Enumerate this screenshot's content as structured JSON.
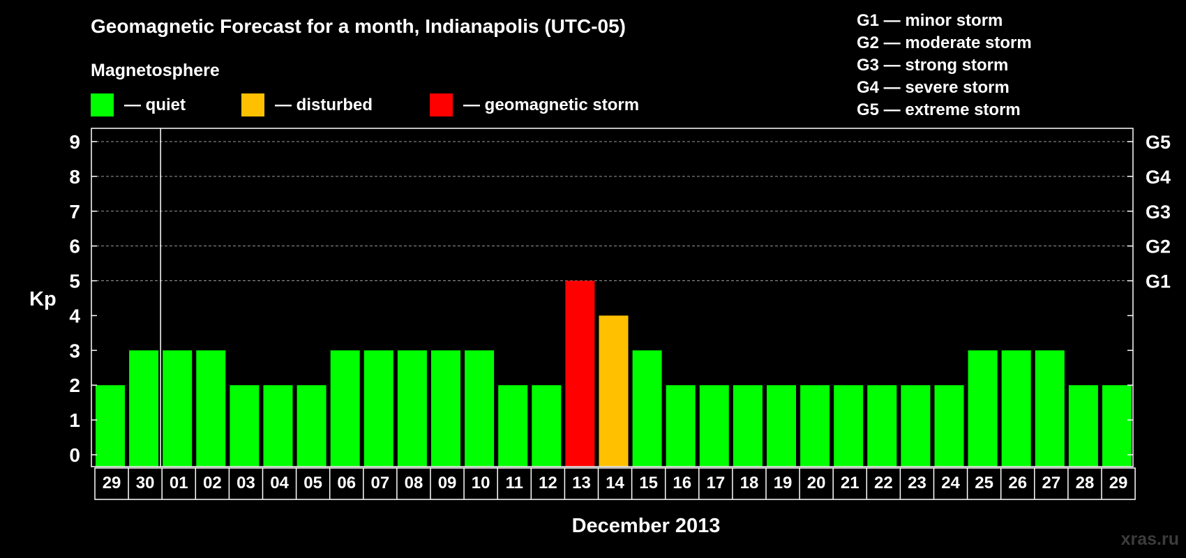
{
  "chart_data": {
    "type": "bar",
    "title": "Geomagnetic Forecast for a month, Indianapolis (UTC-05)",
    "legend_title": "Magnetosphere",
    "legend": [
      {
        "label": "— quiet",
        "color": "#00ff00"
      },
      {
        "label": "— disturbed",
        "color": "#ffc000"
      },
      {
        "label": "— geomagnetic storm",
        "color": "#ff0000"
      }
    ],
    "g_legend": [
      "G1 — minor storm",
      "G2 — moderate storm",
      "G3 — strong storm",
      "G4 — severe storm",
      "G5 — extreme storm"
    ],
    "ylabel": "Kp",
    "xlabel": "December 2013",
    "ylim": [
      0,
      9
    ],
    "yticks": [
      "0",
      "1",
      "2",
      "3",
      "4",
      "5",
      "6",
      "7",
      "8",
      "9"
    ],
    "right_ticks": [
      {
        "kp": 5,
        "label": "G1"
      },
      {
        "kp": 6,
        "label": "G2"
      },
      {
        "kp": 7,
        "label": "G3"
      },
      {
        "kp": 8,
        "label": "G4"
      },
      {
        "kp": 9,
        "label": "G5"
      }
    ],
    "categories": [
      "29",
      "30",
      "01",
      "02",
      "03",
      "04",
      "05",
      "06",
      "07",
      "08",
      "09",
      "10",
      "11",
      "12",
      "13",
      "14",
      "15",
      "16",
      "17",
      "18",
      "19",
      "20",
      "21",
      "22",
      "23",
      "24",
      "25",
      "26",
      "27",
      "28",
      "29"
    ],
    "values": [
      2,
      3,
      3,
      3,
      2,
      2,
      2,
      3,
      3,
      3,
      3,
      3,
      2,
      2,
      5,
      4,
      3,
      2,
      2,
      2,
      2,
      2,
      2,
      2,
      2,
      2,
      3,
      3,
      3,
      2,
      2
    ],
    "status": [
      "quiet",
      "quiet",
      "quiet",
      "quiet",
      "quiet",
      "quiet",
      "quiet",
      "quiet",
      "quiet",
      "quiet",
      "quiet",
      "quiet",
      "quiet",
      "quiet",
      "storm",
      "disturbed",
      "quiet",
      "quiet",
      "quiet",
      "quiet",
      "quiet",
      "quiet",
      "quiet",
      "quiet",
      "quiet",
      "quiet",
      "quiet",
      "quiet",
      "quiet",
      "quiet",
      "quiet"
    ],
    "status_colors": {
      "quiet": "#00ff00",
      "disturbed": "#ffc000",
      "storm": "#ff0000"
    },
    "month_start_index": 2,
    "grid": true
  },
  "watermark": "xras.ru"
}
